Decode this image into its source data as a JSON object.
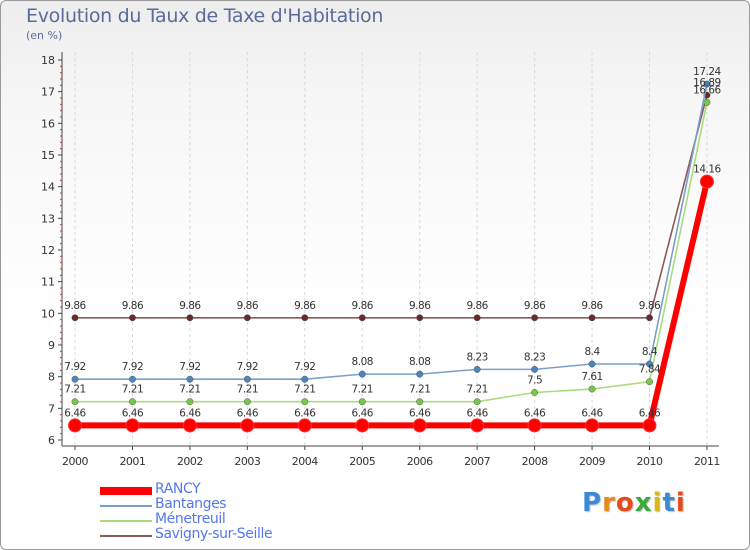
{
  "chart_data": {
    "type": "line",
    "title": "Evolution du Taux de Taxe d'Habitation",
    "subtitle": "(en %)",
    "categories": [
      "2000",
      "2001",
      "2002",
      "2003",
      "2004",
      "2005",
      "2006",
      "2007",
      "2008",
      "2009",
      "2010",
      "2011"
    ],
    "ylim": [
      6,
      18
    ],
    "yticks": [
      "6",
      "7",
      "8",
      "9",
      "10",
      "11",
      "12",
      "13",
      "14",
      "15",
      "16",
      "17",
      "18"
    ],
    "grid": false,
    "legend_position": "bottom-left",
    "series": [
      {
        "name": "RANCY",
        "color": "#ff0000",
        "values": [
          6.46,
          6.46,
          6.46,
          6.46,
          6.46,
          6.46,
          6.46,
          6.46,
          6.46,
          6.46,
          6.46,
          14.16
        ],
        "labels": [
          "6.46",
          "6.46",
          "6.46",
          "6.46",
          "6.46",
          "6.46",
          "6.46",
          "6.46",
          "6.46",
          "6.46",
          "6.46",
          "14.16"
        ]
      },
      {
        "name": "Bantanges",
        "color": "#7aa0c8",
        "marker_color": "#4a86c0",
        "values": [
          7.92,
          7.92,
          7.92,
          7.92,
          7.92,
          8.08,
          8.08,
          8.23,
          8.23,
          8.4,
          8.4,
          17.24
        ],
        "labels": [
          "7.92",
          "7.92",
          "7.92",
          "7.92",
          "7.92",
          "8.08",
          "8.08",
          "8.23",
          "8.23",
          "8.4",
          "8.4",
          "17.24"
        ]
      },
      {
        "name": "Ménetreuil",
        "color": "#a8dc80",
        "marker_color": "#78c848",
        "values": [
          7.21,
          7.21,
          7.21,
          7.21,
          7.21,
          7.21,
          7.21,
          7.21,
          7.5,
          7.61,
          7.84,
          16.66
        ],
        "labels": [
          "7.21",
          "7.21",
          "7.21",
          "7.21",
          "7.21",
          "7.21",
          "7.21",
          "7.21",
          "7.5",
          "7.61",
          "7.84",
          "16.66"
        ]
      },
      {
        "name": "Savigny-sur-Seille",
        "color": "#8a5a5a",
        "marker_color": "#6a2a2a",
        "values": [
          9.86,
          9.86,
          9.86,
          9.86,
          9.86,
          9.86,
          9.86,
          9.86,
          9.86,
          9.86,
          9.86,
          16.89
        ],
        "labels": [
          "9.86",
          "9.86",
          "9.86",
          "9.86",
          "9.86",
          "9.86",
          "9.86",
          "9.86",
          "9.86",
          "9.86",
          "9.86",
          "16.89"
        ]
      }
    ]
  },
  "logo": {
    "letters": [
      "P",
      "r",
      "o",
      "x",
      "i",
      "t",
      "i"
    ],
    "colors": [
      "#3a8ad8",
      "#e88a1a",
      "#e84a1a",
      "#3aaa3a",
      "#d8b81a",
      "#3a8ad8",
      "#e84a1a"
    ]
  }
}
